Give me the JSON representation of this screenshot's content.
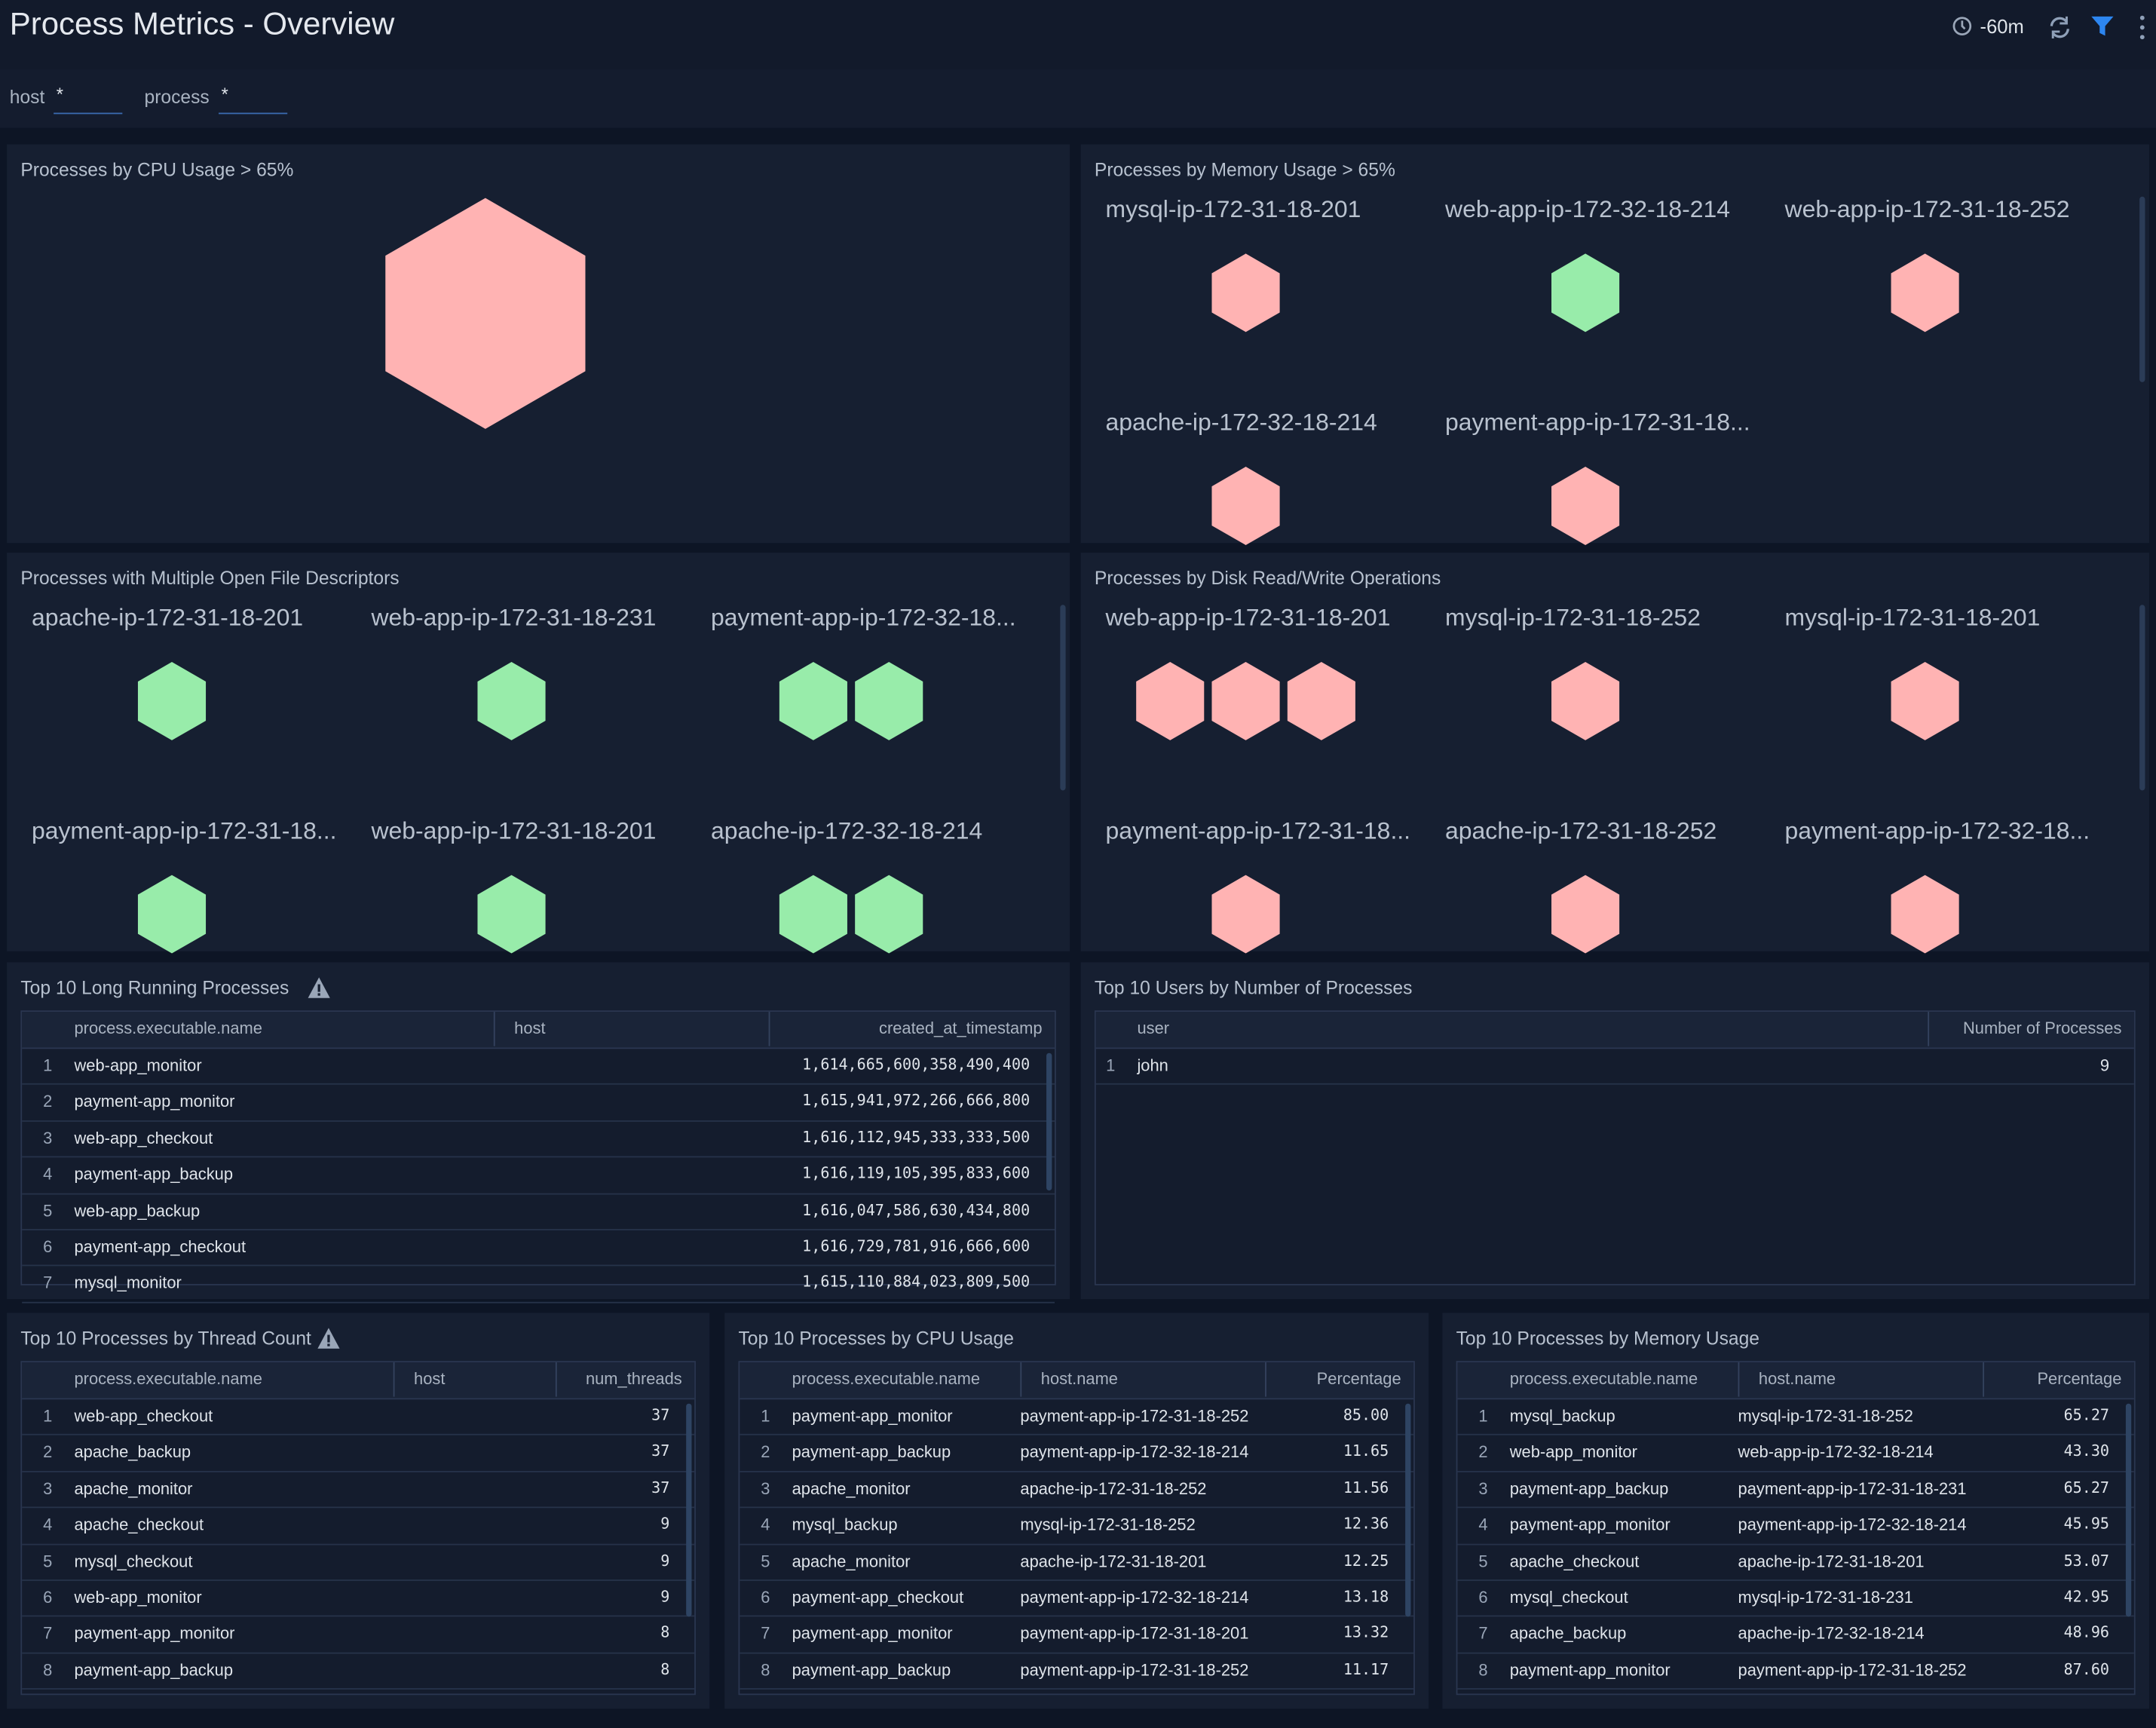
{
  "header": {
    "title": "Process Metrics - Overview",
    "time_range": "-60m"
  },
  "filters": [
    {
      "label": "host",
      "value": "*"
    },
    {
      "label": "process",
      "value": "*"
    }
  ],
  "honeycombs": [
    {
      "title": "Processes by CPU Usage > 65%",
      "groups": [
        {
          "colors": [
            "#ffb3b3"
          ]
        }
      ]
    },
    {
      "title": "Processes by Memory Usage > 65%",
      "groups": [
        {
          "label": "mysql-ip-172-31-18-201",
          "colors": [
            "#ffb3b3"
          ]
        },
        {
          "label": "web-app-ip-172-32-18-214",
          "colors": [
            "#98ecaa"
          ]
        },
        {
          "label": "web-app-ip-172-31-18-252",
          "colors": [
            "#ffb3b3"
          ]
        },
        {
          "label": "apache-ip-172-32-18-214",
          "colors": [
            "#ffb3b3"
          ]
        },
        {
          "label": "payment-app-ip-172-31-18...",
          "colors": [
            "#ffb3b3"
          ]
        }
      ]
    },
    {
      "title": "Processes with Multiple Open File Descriptors",
      "groups": [
        {
          "label": "apache-ip-172-31-18-201",
          "colors": [
            "#98ecaa"
          ]
        },
        {
          "label": "web-app-ip-172-31-18-231",
          "colors": [
            "#98ecaa"
          ]
        },
        {
          "label": "payment-app-ip-172-32-18...",
          "colors": [
            "#98ecaa",
            "#98ecaa"
          ]
        },
        {
          "label": "payment-app-ip-172-31-18...",
          "colors": [
            "#98ecaa"
          ]
        },
        {
          "label": "web-app-ip-172-31-18-201",
          "colors": [
            "#98ecaa"
          ]
        },
        {
          "label": "apache-ip-172-32-18-214",
          "colors": [
            "#98ecaa",
            "#98ecaa"
          ]
        }
      ]
    },
    {
      "title": "Processes by Disk Read/Write Operations",
      "groups": [
        {
          "label": "web-app-ip-172-31-18-201",
          "colors": [
            "#ffb3b3",
            "#ffb3b3",
            "#ffb3b3"
          ]
        },
        {
          "label": "mysql-ip-172-31-18-252",
          "colors": [
            "#ffb3b3"
          ]
        },
        {
          "label": "mysql-ip-172-31-18-201",
          "colors": [
            "#ffb3b3"
          ]
        },
        {
          "label": "payment-app-ip-172-31-18...",
          "colors": [
            "#ffb3b3"
          ]
        },
        {
          "label": "apache-ip-172-31-18-252",
          "colors": [
            "#ffb3b3"
          ]
        },
        {
          "label": "payment-app-ip-172-32-18...",
          "colors": [
            "#ffb3b3"
          ]
        }
      ]
    }
  ],
  "tables": [
    {
      "title": "Top 10 Long Running Processes",
      "warning": true,
      "columns": [
        "process.executable.name",
        "host",
        "created_at_timestamp"
      ],
      "rows": [
        [
          1,
          "web-app_monitor",
          null,
          "1,614,665,600,358,490,400"
        ],
        [
          2,
          "payment-app_monitor",
          null,
          "1,615,941,972,266,666,800"
        ],
        [
          3,
          "web-app_checkout",
          null,
          "1,616,112,945,333,333,500"
        ],
        [
          4,
          "payment-app_backup",
          null,
          "1,616,119,105,395,833,600"
        ],
        [
          5,
          "web-app_backup",
          null,
          "1,616,047,586,630,434,800"
        ],
        [
          6,
          "payment-app_checkout",
          null,
          "1,616,729,781,916,666,600"
        ],
        [
          7,
          "mysql_monitor",
          null,
          "1,615,110,884,023,809,500"
        ]
      ]
    },
    {
      "title": "Top 10 Users by Number of Processes",
      "warning": false,
      "columns": [
        "user",
        "Number of Processes"
      ],
      "rows": [
        [
          1,
          "john",
          9
        ]
      ]
    },
    {
      "title": "Top 10 Processes by Thread Count",
      "warning": true,
      "columns": [
        "process.executable.name",
        "host",
        "num_threads"
      ],
      "rows": [
        [
          1,
          "web-app_checkout",
          null,
          37
        ],
        [
          2,
          "apache_backup",
          null,
          37
        ],
        [
          3,
          "apache_monitor",
          null,
          37
        ],
        [
          4,
          "apache_checkout",
          null,
          9
        ],
        [
          5,
          "mysql_checkout",
          null,
          9
        ],
        [
          6,
          "web-app_monitor",
          null,
          9
        ],
        [
          7,
          "payment-app_monitor",
          null,
          8
        ],
        [
          8,
          "payment-app_backup",
          null,
          8
        ]
      ]
    },
    {
      "title": "Top 10 Processes by CPU Usage",
      "warning": false,
      "columns": [
        "process.executable.name",
        "host.name",
        "Percentage"
      ],
      "rows": [
        [
          1,
          "payment-app_monitor",
          "payment-app-ip-172-31-18-252",
          "85.00"
        ],
        [
          2,
          "payment-app_backup",
          "payment-app-ip-172-32-18-214",
          "11.65"
        ],
        [
          3,
          "apache_monitor",
          "apache-ip-172-31-18-252",
          "11.56"
        ],
        [
          4,
          "mysql_backup",
          "mysql-ip-172-31-18-252",
          "12.36"
        ],
        [
          5,
          "apache_monitor",
          "apache-ip-172-31-18-201",
          "12.25"
        ],
        [
          6,
          "payment-app_checkout",
          "payment-app-ip-172-32-18-214",
          "13.18"
        ],
        [
          7,
          "payment-app_monitor",
          "payment-app-ip-172-31-18-201",
          "13.32"
        ],
        [
          8,
          "payment-app_backup",
          "payment-app-ip-172-31-18-252",
          "11.17"
        ]
      ]
    },
    {
      "title": "Top 10 Processes by Memory Usage",
      "warning": false,
      "columns": [
        "process.executable.name",
        "host.name",
        "Percentage"
      ],
      "rows": [
        [
          1,
          "mysql_backup",
          "mysql-ip-172-31-18-252",
          "65.27"
        ],
        [
          2,
          "web-app_monitor",
          "web-app-ip-172-32-18-214",
          "43.30"
        ],
        [
          3,
          "payment-app_backup",
          "payment-app-ip-172-31-18-231",
          "65.27"
        ],
        [
          4,
          "payment-app_monitor",
          "payment-app-ip-172-32-18-214",
          "45.95"
        ],
        [
          5,
          "apache_checkout",
          "apache-ip-172-31-18-201",
          "53.07"
        ],
        [
          6,
          "mysql_checkout",
          "mysql-ip-172-31-18-231",
          "42.95"
        ],
        [
          7,
          "apache_backup",
          "apache-ip-172-32-18-214",
          "48.96"
        ],
        [
          8,
          "payment-app_monitor",
          "payment-app-ip-172-31-18-252",
          "87.60"
        ]
      ]
    }
  ]
}
